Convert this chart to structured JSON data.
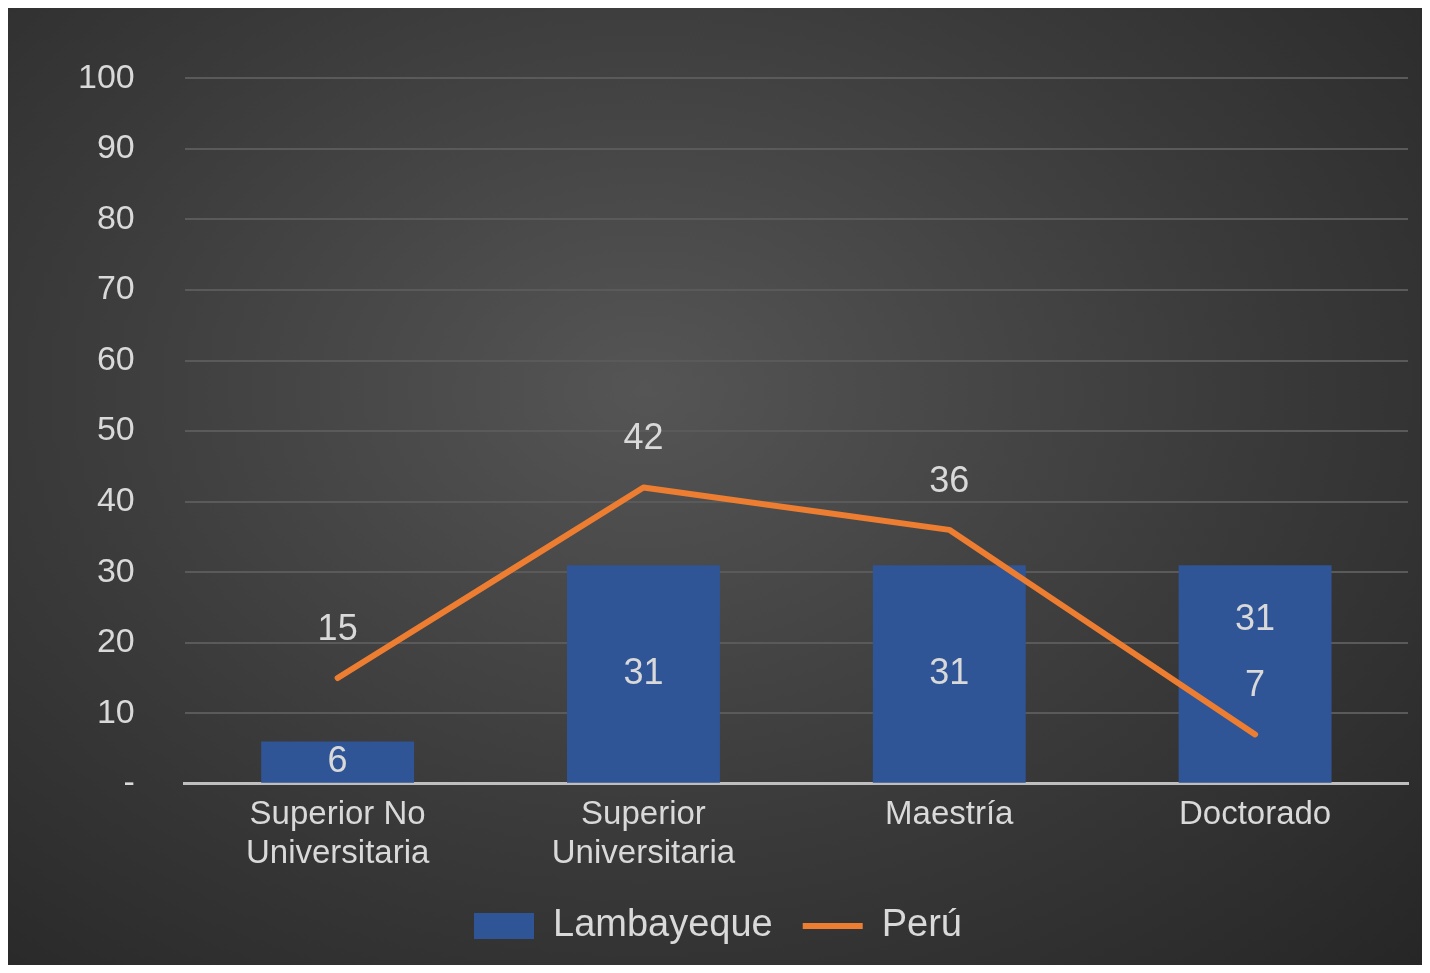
{
  "chart_data": {
    "type": "bar",
    "categories": [
      "Superior No Universitaria",
      "Superior Universitaria",
      "Maestría",
      "Doctorado"
    ],
    "series": [
      {
        "name": "Lambayeque",
        "color": "#2f5597",
        "values": [
          6,
          31,
          31,
          31
        ]
      },
      {
        "name": "Perú",
        "type": "line",
        "color": "#ed7d31",
        "values": [
          15,
          42,
          36,
          7
        ]
      }
    ],
    "ylim": [
      0,
      100
    ],
    "yticks": [
      {
        "value": 0,
        "label": "-"
      },
      10,
      20,
      30,
      40,
      50,
      60,
      70,
      80,
      90,
      100
    ],
    "grid": "y",
    "legend": "bottom",
    "data_labels": true,
    "marker": "none",
    "line_style": "solid"
  }
}
